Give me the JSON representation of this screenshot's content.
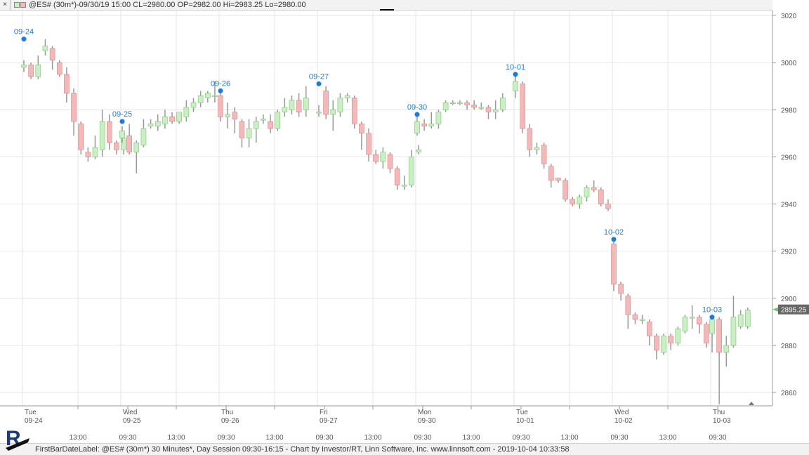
{
  "header": {
    "close_glyph": "×",
    "chart_info": "@ES# (30m*)-09/30/19 15:00 CL=2980.00 OP=2982.00 Hi=2983.25 Lo=2980.00"
  },
  "footer": {
    "text": "FirstBarDateLabel: @ES# (30m*) 30 Minutes*, Day Session 09:30-16:15 - Chart by Investor/RT, Linn Software, Inc. www.linnsoft.com - 2019-10-04 10:33:58"
  },
  "colors": {
    "up_fill": "#c8f0c0",
    "down_fill": "#f4b8b8",
    "wick": "#999999",
    "annotation": "#1c7bd6",
    "grid": "#e6e6e6",
    "last_price_bg": "#666666"
  },
  "chart_data": {
    "type": "candlestick",
    "instrument": "@ES# (30m*)",
    "y_ticks": [
      3020,
      3000,
      2980,
      2960,
      2940,
      2920,
      2900,
      2880,
      2860
    ],
    "ylim": [
      2848,
      3023
    ],
    "last_price": "2895.25",
    "days": [
      {
        "day": "Tue",
        "date": "09-24"
      },
      {
        "day": "Wed",
        "date": "09-25"
      },
      {
        "day": "Thu",
        "date": "09-26"
      },
      {
        "day": "Fri",
        "date": "09-27"
      },
      {
        "day": "Mon",
        "date": "09-30"
      },
      {
        "day": "Tue",
        "date": "10-01"
      },
      {
        "day": "Wed",
        "date": "10-02"
      },
      {
        "day": "Thu",
        "date": "10-03"
      }
    ],
    "x_time_labels": [
      "13:00",
      "09:30",
      "13:00",
      "09:30",
      "13:00",
      "09:30",
      "13:00",
      "09:30",
      "13:00",
      "09:30",
      "13:00",
      "09:30",
      "13:00",
      "09:30"
    ],
    "annotations": [
      {
        "label": "09-24",
        "price": 3010
      },
      {
        "label": "09-25",
        "price": 2975
      },
      {
        "label": "09-26",
        "price": 2988
      },
      {
        "label": "09-27",
        "price": 2991
      },
      {
        "label": "09-30",
        "price": 2978
      },
      {
        "label": "10-01",
        "price": 2995
      },
      {
        "label": "10-02",
        "price": 2925
      },
      {
        "label": "10-03",
        "price": 2892
      }
    ],
    "candles": [
      [
        [
          2998,
          2999,
          3001,
          2996
        ],
        [
          2999,
          2994,
          3000,
          2993
        ],
        [
          2994,
          2999,
          3003,
          2993
        ],
        [
          3005,
          3007,
          3010,
          3003
        ],
        [
          3006,
          3001,
          3007,
          2997
        ],
        [
          3000,
          2995,
          3001,
          2994
        ],
        [
          2995,
          2987,
          2998,
          2983
        ],
        [
          2987,
          2975,
          2989,
          2969
        ],
        [
          2974,
          2963,
          2975,
          2961
        ],
        [
          2962,
          2960,
          2964,
          2958
        ],
        [
          2960,
          2964,
          2969,
          2959
        ],
        [
          2963,
          2975,
          2980,
          2960
        ],
        [
          2975,
          2966,
          2978,
          2963
        ],
        [
          2966,
          2963,
          2967,
          2961
        ],
        [
          2963,
          2968,
          2970,
          2961
        ]
      ],
      [
        [
          2968,
          2971,
          2973,
          2966
        ],
        [
          2969,
          2962,
          2974,
          2961
        ],
        [
          2962,
          2966,
          2967,
          2953
        ],
        [
          2965,
          2972,
          2976,
          2964
        ],
        [
          2973,
          2974,
          2976,
          2972
        ],
        [
          2973,
          2975,
          2978,
          2971
        ],
        [
          2974,
          2977,
          2980,
          2972
        ],
        [
          2977,
          2975,
          2979,
          2974
        ],
        [
          2975,
          2979,
          2979,
          2974
        ],
        [
          2977,
          2981,
          2984,
          2975
        ],
        [
          2981,
          2983,
          2985,
          2979
        ],
        [
          2983,
          2986,
          2988,
          2981
        ],
        [
          2985,
          2987,
          2988,
          2983
        ],
        [
          2986,
          2986,
          2992,
          2983
        ]
      ],
      [
        [
          2986,
          2977,
          2988,
          2975
        ],
        [
          2977,
          2978,
          2983,
          2972
        ],
        [
          2979,
          2976,
          2981,
          2970
        ],
        [
          2975,
          2968,
          2976,
          2964
        ],
        [
          2968,
          2972,
          2976,
          2964
        ],
        [
          2972,
          2975,
          2977,
          2966
        ],
        [
          2976,
          2976,
          2978,
          2974
        ],
        [
          2975,
          2972,
          2978,
          2970
        ],
        [
          2972,
          2979,
          2980,
          2971
        ],
        [
          2979,
          2981,
          2985,
          2977
        ],
        [
          2980,
          2984,
          2986,
          2978
        ],
        [
          2984,
          2979,
          2987,
          2977
        ],
        [
          2980,
          2985,
          2990,
          2977
        ]
      ],
      [
        [
          2979,
          2979,
          2982,
          2977
        ],
        [
          2988,
          2978,
          2990,
          2976
        ],
        [
          2978,
          2980,
          2984,
          2971
        ],
        [
          2979,
          2985,
          2987,
          2977
        ],
        [
          2985,
          2986,
          2987,
          2983
        ],
        [
          2985,
          2974,
          2986,
          2972
        ],
        [
          2974,
          2970,
          2975,
          2963
        ],
        [
          2970,
          2961,
          2972,
          2958
        ],
        [
          2961,
          2958,
          2963,
          2957
        ],
        [
          2958,
          2962,
          2964,
          2955
        ],
        [
          2961,
          2955,
          2962,
          2953
        ],
        [
          2955,
          2948,
          2956,
          2946
        ],
        [
          2948,
          2948,
          2952,
          2946
        ],
        [
          2948,
          2960,
          2963,
          2947
        ],
        [
          2962,
          2963,
          2965,
          2961
        ]
      ],
      [
        [
          2970,
          2975,
          2977,
          2969
        ],
        [
          2974,
          2973,
          2976,
          2971
        ],
        [
          2973,
          2974,
          2979,
          2972
        ],
        [
          2974,
          2979,
          2980,
          2972
        ],
        [
          2980,
          2983,
          2984,
          2979
        ],
        [
          2983,
          2983,
          2984,
          2982
        ],
        [
          2983,
          2983,
          2984,
          2982
        ],
        [
          2983,
          2982,
          2984,
          2980
        ],
        [
          2982,
          2981,
          2984,
          2980
        ],
        [
          2981,
          2981,
          2983,
          2980
        ],
        [
          2981,
          2979,
          2982,
          2976
        ],
        [
          2979,
          2980,
          2984,
          2976
        ],
        [
          2980,
          2985,
          2987,
          2979
        ]
      ],
      [
        [
          2988,
          2992,
          2995,
          2985
        ],
        [
          2991,
          2972,
          2992,
          2970
        ],
        [
          2972,
          2963,
          2974,
          2960
        ],
        [
          2963,
          2964,
          2966,
          2961
        ],
        [
          2965,
          2957,
          2966,
          2955
        ],
        [
          2956,
          2950,
          2957,
          2947
        ],
        [
          2951,
          2950,
          2951,
          2949
        ],
        [
          2950,
          2942,
          2951,
          2941
        ],
        [
          2942,
          2940,
          2943,
          2939
        ],
        [
          2940,
          2943,
          2944,
          2938
        ],
        [
          2943,
          2947,
          2948,
          2941
        ],
        [
          2947,
          2946,
          2950,
          2945
        ],
        [
          2946,
          2940,
          2947,
          2939
        ],
        [
          2940,
          2938,
          2942,
          2937
        ]
      ],
      [
        [
          2923,
          2906,
          2924,
          2903
        ],
        [
          2906,
          2902,
          2907,
          2899
        ],
        [
          2901,
          2893,
          2902,
          2887
        ],
        [
          2893,
          2891,
          2894,
          2889
        ],
        [
          2891,
          2891,
          2893,
          2889
        ],
        [
          2890,
          2884,
          2891,
          2880
        ],
        [
          2884,
          2878,
          2885,
          2874
        ],
        [
          2877,
          2884,
          2885,
          2876
        ],
        [
          2884,
          2881,
          2885,
          2878
        ],
        [
          2881,
          2887,
          2888,
          2880
        ],
        [
          2886,
          2892,
          2893,
          2885
        ],
        [
          2892,
          2892,
          2897,
          2887
        ],
        [
          2892,
          2889,
          2893,
          2885
        ],
        [
          2889,
          2881,
          2890,
          2879
        ]
      ],
      [
        [
          2885,
          2891,
          2893,
          2877
        ],
        [
          2891,
          2877,
          2892,
          2855
        ],
        [
          2877,
          2880,
          2884,
          2871
        ],
        [
          2880,
          2892,
          2901,
          2879
        ],
        [
          2888,
          2893,
          2895,
          2887
        ],
        [
          2888,
          2895,
          2896,
          2887
        ]
      ]
    ]
  }
}
